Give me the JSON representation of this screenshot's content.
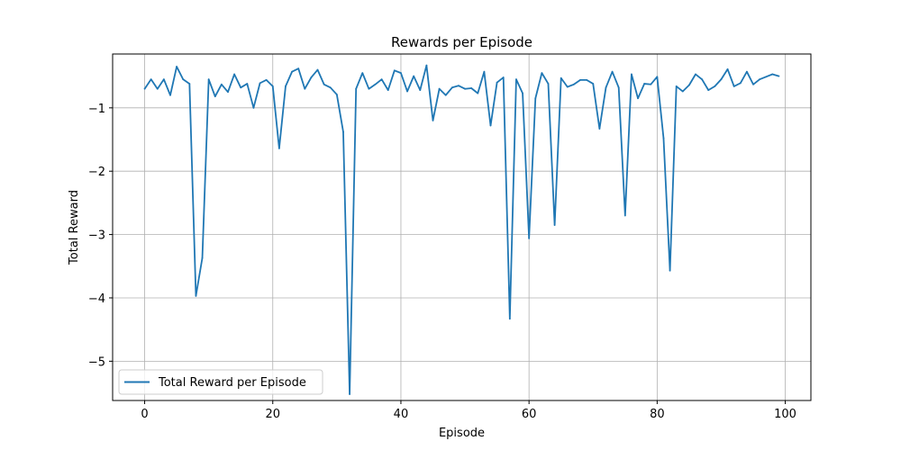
{
  "chart_data": {
    "type": "line",
    "title": "Rewards per Episode",
    "xlabel": "Episode",
    "ylabel": "Total Reward",
    "xlim": [
      -5,
      104
    ],
    "ylim": [
      -5.62,
      -0.15
    ],
    "xticks": [
      0,
      20,
      40,
      60,
      80,
      100
    ],
    "yticks": [
      -5,
      -4,
      -3,
      -2,
      -1
    ],
    "xtick_labels": [
      "0",
      "20",
      "40",
      "60",
      "80",
      "100"
    ],
    "ytick_labels": [
      "−5",
      "−4",
      "−3",
      "−2",
      "−1"
    ],
    "grid": true,
    "legend_position": "lower-left",
    "series": [
      {
        "name": "Total Reward per Episode",
        "color": "#1f77b4",
        "x": [
          0,
          1,
          2,
          3,
          4,
          5,
          6,
          7,
          8,
          9,
          10,
          11,
          12,
          13,
          14,
          15,
          16,
          17,
          18,
          19,
          20,
          21,
          22,
          23,
          24,
          25,
          26,
          27,
          28,
          29,
          30,
          31,
          32,
          33,
          34,
          35,
          36,
          37,
          38,
          39,
          40,
          41,
          42,
          43,
          44,
          45,
          46,
          47,
          48,
          49,
          50,
          51,
          52,
          53,
          54,
          55,
          56,
          57,
          58,
          59,
          60,
          61,
          62,
          63,
          64,
          65,
          66,
          67,
          68,
          69,
          70,
          71,
          72,
          73,
          74,
          75,
          76,
          77,
          78,
          79,
          80,
          81,
          82,
          83,
          84,
          85,
          86,
          87,
          88,
          89,
          90,
          91,
          92,
          93,
          94,
          95,
          96,
          97,
          98,
          99
        ],
        "values": [
          -0.7,
          -0.55,
          -0.7,
          -0.55,
          -0.8,
          -0.35,
          -0.55,
          -0.62,
          -3.97,
          -3.37,
          -0.55,
          -0.82,
          -0.63,
          -0.75,
          -0.47,
          -0.68,
          -0.62,
          -1.0,
          -0.61,
          -0.56,
          -0.66,
          -1.64,
          -0.66,
          -0.43,
          -0.38,
          -0.7,
          -0.52,
          -0.4,
          -0.63,
          -0.68,
          -0.79,
          -1.38,
          -5.52,
          -0.7,
          -0.45,
          -0.7,
          -0.63,
          -0.55,
          -0.72,
          -0.41,
          -0.45,
          -0.74,
          -0.5,
          -0.72,
          -0.33,
          -1.2,
          -0.7,
          -0.8,
          -0.68,
          -0.65,
          -0.7,
          -0.69,
          -0.77,
          -0.43,
          -1.28,
          -0.6,
          -0.52,
          -4.33,
          -0.55,
          -0.77,
          -3.06,
          -0.85,
          -0.45,
          -0.62,
          -2.85,
          -0.53,
          -0.67,
          -0.63,
          -0.56,
          -0.56,
          -0.62,
          -1.33,
          -0.68,
          -0.43,
          -0.68,
          -2.7,
          -0.47,
          -0.85,
          -0.62,
          -0.63,
          -0.51,
          -1.48,
          -3.57,
          -0.66,
          -0.74,
          -0.64,
          -0.47,
          -0.55,
          -0.72,
          -0.66,
          -0.55,
          -0.39,
          -0.66,
          -0.61,
          -0.43,
          -0.63,
          -0.55,
          -0.51,
          -0.47,
          -0.5
        ]
      }
    ]
  }
}
